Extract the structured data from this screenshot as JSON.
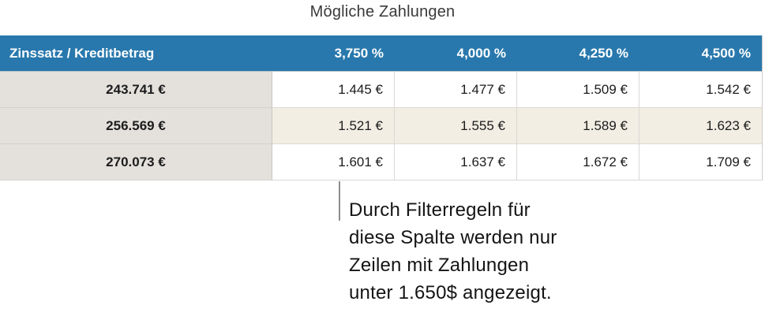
{
  "title": "Mögliche Zahlungen",
  "table": {
    "header": {
      "corner": "Zinssatz / Kreditbetrag",
      "columns": [
        "3,750 %",
        "4,000 %",
        "4,250 %",
        "4,500 %"
      ]
    },
    "rows": [
      {
        "label": "243.741 €",
        "values": [
          "1.445 €",
          "1.477 €",
          "1.509 €",
          "1.542 €"
        ]
      },
      {
        "label": "256.569 €",
        "values": [
          "1.521 €",
          "1.555 €",
          "1.589 €",
          "1.623 €"
        ]
      },
      {
        "label": "270.073 €",
        "values": [
          "1.601 €",
          "1.637 €",
          "1.672 €",
          "1.709 €"
        ]
      }
    ]
  },
  "callout": {
    "text": "Durch Filterregeln für\ndiese Spalte werden nur\nZeilen mit Zahlungen\nunter 1.650$ angezeigt."
  },
  "colors": {
    "header_bg": "#2878ad",
    "header_text": "#ffffff",
    "label_column_bg": "#e4e1dc",
    "row_alt_bg": "#f2eee3",
    "row_bg": "#ffffff",
    "cell_border": "#dbd9d5",
    "callout_line": "#8e8e8e",
    "body_text": "#1c1c1e",
    "title_text": "#3a3a3c"
  }
}
